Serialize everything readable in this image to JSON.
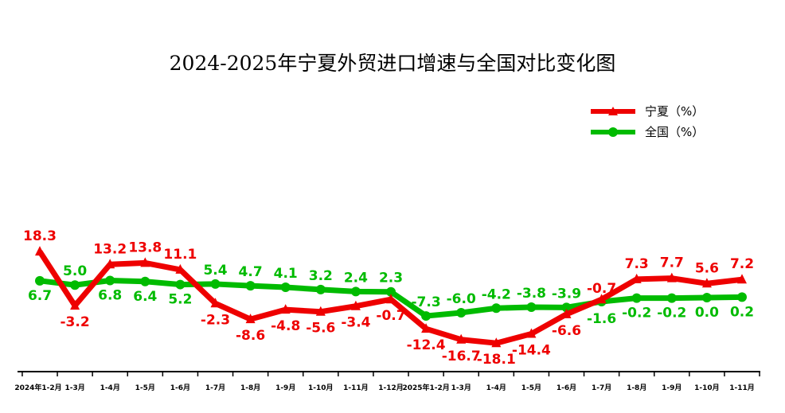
{
  "chart_data": {
    "type": "line",
    "title": "2024-2025年宁夏外贸进口增速与全国对比变化图",
    "categories": [
      "2024年1-2月",
      "1-3月",
      "1-4月",
      "1-5月",
      "1-6月",
      "1-7月",
      "1-8月",
      "1-9月",
      "1-10月",
      "1-11月",
      "1-12月",
      "2025年1-2月",
      "1-3月",
      "1-4月",
      "1-5月",
      "1-6月",
      "1-7月",
      "1-8月",
      "1-9月",
      "1-10月",
      "1-11月"
    ],
    "series": [
      {
        "name": "宁夏（%）",
        "color": "#ee0000",
        "marker": "triangle",
        "values": [
          18.3,
          -3.2,
          13.2,
          13.8,
          11.1,
          -2.3,
          -8.6,
          -4.8,
          -5.6,
          -3.4,
          -0.7,
          -12.4,
          -16.7,
          -18.1,
          -14.4,
          -6.6,
          -0.7,
          7.3,
          7.7,
          5.6,
          7.2
        ]
      },
      {
        "name": "全国（%）",
        "color": "#00bb00",
        "marker": "circle",
        "values": [
          6.7,
          5.0,
          6.8,
          6.4,
          5.2,
          5.4,
          4.7,
          4.1,
          3.2,
          2.4,
          2.3,
          -7.3,
          -6.0,
          -4.2,
          -3.8,
          -3.9,
          -1.6,
          -0.2,
          -0.2,
          0.0,
          0.2
        ]
      }
    ],
    "legend": "top-right",
    "grid": false
  }
}
